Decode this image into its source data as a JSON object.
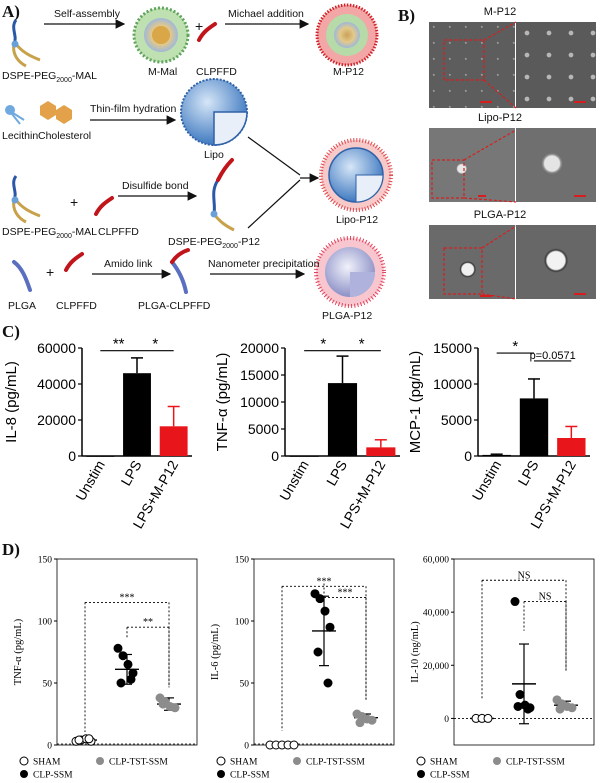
{
  "panelA": {
    "label": "A)",
    "row1": {
      "left": "DSPE-PEG",
      "sub": "2000",
      "right": "-MAL",
      "step1": "Self-assembly",
      "mid": "M-Mal",
      "reagent": "CLPFFD",
      "step2": "Michael addition",
      "product": "M-P12"
    },
    "row2": {
      "lecithin": "Lecithin",
      "cholesterol": "Cholesterol",
      "step": "Thin-film hydration",
      "product": "Lipo"
    },
    "row3": {
      "left": "DSPE-PEG",
      "sub": "2000",
      "right": "-MAL",
      "reagent": "CLPFFD",
      "step": "Disulfide bond",
      "prodLeft": "DSPE-PEG",
      "prodSub": "2000",
      "prodRight": "-P12",
      "final": "Lipo-P12"
    },
    "row4": {
      "plga": "PLGA",
      "reagent": "CLPFFD",
      "step1": "Amido link",
      "mid": "PLGA-CLPFFD",
      "step2": "Nanometer precipitation",
      "product": "PLGA-P12"
    },
    "plus": "+"
  },
  "panelB": {
    "label": "B)",
    "titles": [
      "M-P12",
      "Lipo-P12",
      "PLGA-P12"
    ]
  },
  "panelC": {
    "label": "C)",
    "charts": [
      {
        "type": "bar",
        "ylabel": "IL-8 (pg/mL)",
        "ylim": [
          0,
          60000
        ],
        "ticks": [
          "0",
          "20000",
          "40000",
          "60000"
        ],
        "tickVals": [
          0,
          20000,
          40000,
          60000
        ],
        "categories": [
          "Unstim",
          "LPS",
          "LPS+M-P12"
        ],
        "values": [
          0,
          46000,
          16500
        ],
        "errors": [
          0,
          8500,
          11000
        ],
        "colors": [
          "#000000",
          "#000000",
          "#e8161b"
        ],
        "sig": [
          {
            "text": "**",
            "from": 0,
            "to": 1,
            "y": 58500
          },
          {
            "text": "*",
            "from": 1,
            "to": 2,
            "y": 58500
          }
        ]
      },
      {
        "type": "bar",
        "ylabel": "TNF-α (pg/mL)",
        "ylim": [
          0,
          20000
        ],
        "ticks": [
          "0",
          "5000",
          "10000",
          "15000",
          "20000"
        ],
        "tickVals": [
          0,
          5000,
          10000,
          15000,
          20000
        ],
        "categories": [
          "Unstim",
          "LPS",
          "LPS+M-P12"
        ],
        "values": [
          0,
          13500,
          1600
        ],
        "errors": [
          0,
          5000,
          1400
        ],
        "colors": [
          "#000000",
          "#000000",
          "#e8161b"
        ],
        "sig": [
          {
            "text": "*",
            "from": 0,
            "to": 1,
            "y": 19500
          },
          {
            "text": "*",
            "from": 1,
            "to": 2,
            "y": 19500
          }
        ]
      },
      {
        "type": "bar",
        "ylabel": "MCP-1 (pg/mL)",
        "ylim": [
          0,
          15000
        ],
        "ticks": [
          "0",
          "5000",
          "10000",
          "15000"
        ],
        "tickVals": [
          0,
          5000,
          10000,
          15000
        ],
        "categories": [
          "Unstim",
          "LPS",
          "LPS+M-P12"
        ],
        "values": [
          150,
          8000,
          2500
        ],
        "errors": [
          100,
          2700,
          1600
        ],
        "colors": [
          "#000000",
          "#000000",
          "#e8161b"
        ],
        "sig": [
          {
            "text": "*",
            "from": 0,
            "to": 1,
            "y": 14300
          },
          {
            "text": "p=0.0571",
            "from": 1,
            "to": 2,
            "y": 13200
          }
        ]
      }
    ]
  },
  "panelD": {
    "label": "D)",
    "legend": [
      "SHAM",
      "CLP-TST-SSM",
      "CLP-SSM"
    ],
    "charts": [
      {
        "type": "scatter",
        "ylabel": "TNF-α (pg/mL)",
        "ylim": [
          0,
          150
        ],
        "ticks": [
          "0",
          "50",
          "100",
          "150"
        ],
        "tickVals": [
          0,
          50,
          100,
          150
        ],
        "groups": [
          {
            "name": "SHAM",
            "points": [
              3,
              4,
              5,
              3,
              4,
              5
            ],
            "mean": 4,
            "sd": 1.5,
            "style": "open"
          },
          {
            "name": "CLP-SSM",
            "points": [
              78,
              72,
              65,
              58,
              50,
              53
            ],
            "mean": 61,
            "sd": 12,
            "style": "black"
          },
          {
            "name": "CLP-TST-SSM",
            "points": [
              38,
              35,
              31,
              30,
              33
            ],
            "mean": 33,
            "sd": 5,
            "style": "grey"
          }
        ],
        "sig": [
          {
            "text": "***",
            "from": 0,
            "to": 2,
            "y": 115,
            "drop": [
              4,
              40
            ]
          },
          {
            "text": "**",
            "from": 1,
            "to": 2,
            "y": 95,
            "drop": [
              80,
              40
            ]
          }
        ]
      },
      {
        "type": "scatter",
        "ylabel": "IL-6 (pg/mL)",
        "ylim": [
          0,
          150
        ],
        "ticks": [
          "0",
          "50",
          "100",
          "150"
        ],
        "tickVals": [
          0,
          50,
          100,
          150
        ],
        "groups": [
          {
            "name": "SHAM",
            "points": [
              0,
              0,
              0,
              0,
              0
            ],
            "mean": 0,
            "sd": 0,
            "style": "open"
          },
          {
            "name": "CLP-SSM",
            "points": [
              122,
              118,
              108,
              95,
              75,
              50
            ],
            "mean": 92,
            "sd": 28,
            "style": "black"
          },
          {
            "name": "CLP-TST-SSM",
            "points": [
              25,
              23,
              21,
              20,
              18
            ],
            "mean": 22,
            "sd": 3,
            "style": "grey"
          }
        ],
        "sig": [
          {
            "text": "***",
            "from": 0,
            "to": 2,
            "y": 128,
            "drop": [
              5,
              30
            ]
          },
          {
            "text": "***",
            "from": 1,
            "to": 2,
            "y": 119,
            "drop": [
              124,
              30
            ]
          }
        ]
      },
      {
        "type": "scatter",
        "ylabel": "IL-10 (ng/mL)",
        "ylim": [
          -10000,
          60000
        ],
        "ticks": [
          "0",
          "20,000",
          "40,000",
          "60,000"
        ],
        "tickVals": [
          0,
          20000,
          40000,
          60000
        ],
        "groups": [
          {
            "name": "SHAM",
            "points": [
              0,
              0,
              0
            ],
            "mean": 0,
            "sd": 0,
            "style": "open"
          },
          {
            "name": "CLP-SSM",
            "points": [
              44000,
              9000,
              5000,
              4000,
              4500,
              3500
            ],
            "mean": 13000,
            "sd": 15000,
            "style": "black"
          },
          {
            "name": "CLP-TST-SSM",
            "points": [
              7000,
              5500,
              4500,
              4000,
              3500
            ],
            "mean": 5000,
            "sd": 1500,
            "style": "grey"
          }
        ],
        "sig": [
          {
            "text": "NS",
            "from": 0,
            "to": 2,
            "y": 52000,
            "drop": [
              4000,
              15000
            ]
          },
          {
            "text": "NS",
            "from": 1,
            "to": 2,
            "y": 44000,
            "drop": [
              30000,
              15000
            ]
          }
        ]
      }
    ]
  }
}
